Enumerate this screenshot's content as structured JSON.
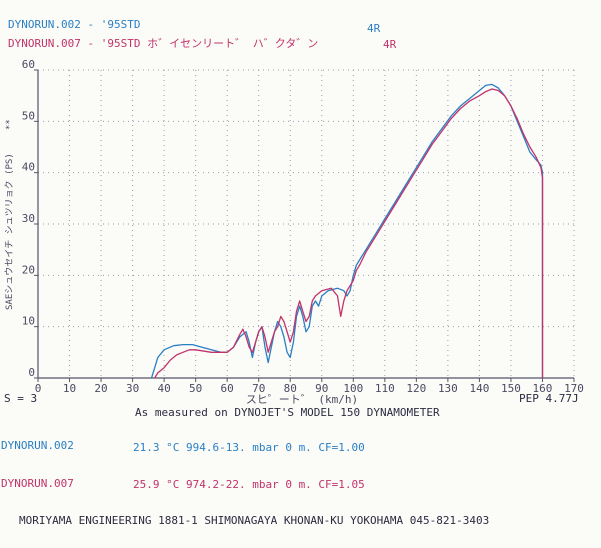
{
  "header": {
    "run1": "DYNORUN.002 - '95STD",
    "run1_gear": "4R",
    "run2": "DYNORUN.007 - '95STD ホ゛イセンリート゛ ハ゛クタ゛ン",
    "run2_gear": "4R"
  },
  "footer": {
    "s_label": "S = 3",
    "subtitle": "As measured on DYNOJET'S MODEL 150 DYNAMOMETER",
    "pep": "PEP 4.77J",
    "run1_name": "DYNORUN.002",
    "run1_cond": "21.3 °C 994.6-13. mbar 0 m. CF=1.00",
    "run2_name": "DYNORUN.007",
    "run2_cond": "25.9 °C 974.2-22. mbar 0 m. CF=1.05",
    "company": "MORIYAMA ENGINEERING 1881-1 SHIMONAGAYA KHONAN-KU YOKOHAMA 045-821-3403"
  },
  "colors": {
    "blue": "#2a7fc4",
    "red": "#c2336a",
    "axis": "#55556a",
    "grid": "#9a9aae"
  },
  "chart_data": {
    "type": "line",
    "xlabel": "スヒ゜ート゛ (km/h)",
    "ylabel": "SAEシュウセイチ シュツリョク (PS)",
    "ylabel_marks": "**",
    "xlim": [
      0,
      170
    ],
    "ylim": [
      0,
      60
    ],
    "xticks": [
      0,
      10,
      20,
      30,
      40,
      50,
      60,
      70,
      80,
      90,
      100,
      110,
      120,
      130,
      140,
      150,
      160,
      170
    ],
    "yticks": [
      0,
      10,
      20,
      30,
      40,
      50,
      60
    ],
    "grid": true,
    "series": [
      {
        "name": "DYNORUN.002",
        "color": "#2a7fc4",
        "points": [
          [
            36,
            0
          ],
          [
            37,
            2
          ],
          [
            38,
            4
          ],
          [
            40,
            5.5
          ],
          [
            43,
            6.3
          ],
          [
            46,
            6.5
          ],
          [
            49,
            6.5
          ],
          [
            52,
            6
          ],
          [
            55,
            5.5
          ],
          [
            58,
            5
          ],
          [
            60,
            5
          ],
          [
            62,
            6
          ],
          [
            64,
            8
          ],
          [
            66,
            9
          ],
          [
            67,
            7
          ],
          [
            68,
            4
          ],
          [
            69,
            7
          ],
          [
            70,
            9
          ],
          [
            71,
            10
          ],
          [
            72,
            6
          ],
          [
            73,
            3
          ],
          [
            74,
            6
          ],
          [
            75,
            9
          ],
          [
            76,
            11
          ],
          [
            77,
            10
          ],
          [
            78,
            8
          ],
          [
            79,
            5
          ],
          [
            80,
            4
          ],
          [
            81,
            7
          ],
          [
            82,
            12
          ],
          [
            83,
            14
          ],
          [
            84,
            12
          ],
          [
            85,
            9
          ],
          [
            86,
            10
          ],
          [
            87,
            14
          ],
          [
            88,
            15
          ],
          [
            89,
            14
          ],
          [
            90,
            16
          ],
          [
            92,
            17
          ],
          [
            95,
            17.5
          ],
          [
            97,
            17
          ],
          [
            98,
            16
          ],
          [
            99,
            17
          ],
          [
            100,
            20
          ],
          [
            101,
            22
          ],
          [
            102,
            23
          ],
          [
            104,
            25
          ],
          [
            107,
            28
          ],
          [
            110,
            31
          ],
          [
            113,
            34
          ],
          [
            116,
            37
          ],
          [
            119,
            40
          ],
          [
            122,
            43
          ],
          [
            125,
            46
          ],
          [
            128,
            48.5
          ],
          [
            131,
            51
          ],
          [
            134,
            53
          ],
          [
            137,
            54.5
          ],
          [
            140,
            56
          ],
          [
            142,
            57
          ],
          [
            144,
            57.2
          ],
          [
            146,
            56.5
          ],
          [
            148,
            55
          ],
          [
            150,
            53
          ],
          [
            152,
            50
          ],
          [
            154,
            47
          ],
          [
            156,
            44
          ],
          [
            158,
            42.5
          ],
          [
            159.5,
            41.5
          ],
          [
            160,
            40
          ],
          [
            160,
            0
          ]
        ]
      },
      {
        "name": "DYNORUN.007",
        "color": "#c2336a",
        "points": [
          [
            37,
            0
          ],
          [
            38,
            1
          ],
          [
            40,
            2
          ],
          [
            42,
            3.5
          ],
          [
            44,
            4.5
          ],
          [
            46,
            5
          ],
          [
            48,
            5.5
          ],
          [
            50,
            5.5
          ],
          [
            52,
            5.3
          ],
          [
            55,
            5
          ],
          [
            58,
            5
          ],
          [
            60,
            5
          ],
          [
            62,
            6
          ],
          [
            64,
            8.5
          ],
          [
            65,
            9.5
          ],
          [
            66,
            8
          ],
          [
            67,
            6
          ],
          [
            68,
            5
          ],
          [
            69,
            7
          ],
          [
            70,
            9
          ],
          [
            71,
            10
          ],
          [
            72,
            8
          ],
          [
            73,
            5
          ],
          [
            74,
            7
          ],
          [
            75,
            9
          ],
          [
            76,
            10
          ],
          [
            77,
            12
          ],
          [
            78,
            11
          ],
          [
            79,
            9
          ],
          [
            80,
            7
          ],
          [
            81,
            9
          ],
          [
            82,
            13
          ],
          [
            83,
            15
          ],
          [
            84,
            13
          ],
          [
            85,
            11
          ],
          [
            86,
            12
          ],
          [
            87,
            15
          ],
          [
            88,
            16
          ],
          [
            90,
            17
          ],
          [
            93,
            17.5
          ],
          [
            95,
            16
          ],
          [
            96,
            12
          ],
          [
            97,
            15
          ],
          [
            98,
            17
          ],
          [
            100,
            19
          ],
          [
            101,
            21
          ],
          [
            102,
            22
          ],
          [
            104,
            24.5
          ],
          [
            107,
            27.5
          ],
          [
            110,
            30.5
          ],
          [
            113,
            33.5
          ],
          [
            116,
            36.5
          ],
          [
            119,
            39.5
          ],
          [
            122,
            42.5
          ],
          [
            125,
            45.5
          ],
          [
            128,
            48
          ],
          [
            131,
            50.5
          ],
          [
            134,
            52.5
          ],
          [
            137,
            54
          ],
          [
            140,
            55
          ],
          [
            142,
            55.8
          ],
          [
            144,
            56.3
          ],
          [
            146,
            56
          ],
          [
            148,
            55
          ],
          [
            150,
            53
          ],
          [
            152,
            50.5
          ],
          [
            154,
            47.5
          ],
          [
            156,
            45
          ],
          [
            158,
            43
          ],
          [
            159.5,
            41
          ],
          [
            160,
            39
          ],
          [
            160,
            0
          ]
        ]
      }
    ]
  }
}
